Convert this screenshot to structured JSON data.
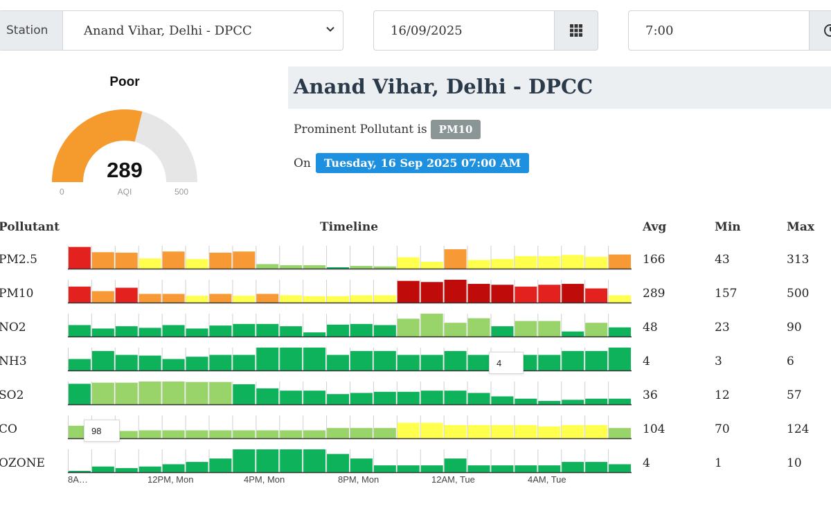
{
  "controls": {
    "station_label": "Station",
    "station_value": "Anand Vihar, Delhi - DPCC",
    "date_value": "16/09/2025",
    "time_value": "7:00"
  },
  "gauge": {
    "status": "Poor",
    "value": 289,
    "value_text": "289",
    "min_label": "0",
    "max_label": "500",
    "unit_label": "AQI",
    "range": [
      0,
      500
    ],
    "color": "#f59a2c"
  },
  "station": {
    "title": "Anand Vihar, Delhi - DPCC",
    "prominent_prefix": "Prominent Pollutant is",
    "prominent_value": "PM10",
    "on_prefix": "On",
    "datetime": "Tuesday, 16 Sep 2025 07:00 AM"
  },
  "table": {
    "headers": {
      "pollutant": "Pollutant",
      "timeline": "Timeline",
      "avg": "Avg",
      "min": "Min",
      "max": "Max"
    },
    "time_labels": [
      "8A…",
      "12PM, Mon",
      "4PM, Mon",
      "8PM, Mon",
      "12AM, Tue",
      "4AM, Tue"
    ],
    "colors": {
      "red": "#e3211e",
      "orange": "#f79a35",
      "yellow": "#ffff4d",
      "lightgreen": "#98d46a",
      "green": "#0db25a",
      "darkred": "#c00b0b"
    },
    "rows": [
      {
        "name": "PM2.5",
        "avg": "166",
        "min": "43",
        "max": "313",
        "values": [
          0.95,
          0.72,
          0.7,
          0.45,
          0.75,
          0.42,
          0.7,
          0.75,
          0.2,
          0.15,
          0.15,
          0.05,
          0.12,
          0.1,
          0.5,
          0.3,
          0.85,
          0.38,
          0.42,
          0.55,
          0.55,
          0.6,
          0.52,
          0.62
        ],
        "colors": [
          "red",
          "orange",
          "orange",
          "yellow",
          "orange",
          "yellow",
          "orange",
          "orange",
          "lightgreen",
          "lightgreen",
          "lightgreen",
          "green",
          "lightgreen",
          "lightgreen",
          "yellow",
          "yellow",
          "orange",
          "yellow",
          "yellow",
          "yellow",
          "yellow",
          "yellow",
          "yellow",
          "orange"
        ]
      },
      {
        "name": "PM10",
        "avg": "289",
        "min": "157",
        "max": "500",
        "values": [
          0.7,
          0.5,
          0.65,
          0.38,
          0.38,
          0.3,
          0.38,
          0.3,
          0.38,
          0.32,
          0.28,
          0.28,
          0.32,
          0.32,
          0.95,
          0.9,
          1.0,
          0.82,
          0.78,
          0.7,
          0.78,
          0.82,
          0.62,
          0.32
        ],
        "colors": [
          "red",
          "orange",
          "red",
          "orange",
          "orange",
          "yellow",
          "orange",
          "yellow",
          "orange",
          "yellow",
          "yellow",
          "yellow",
          "yellow",
          "yellow",
          "darkred",
          "darkred",
          "darkred",
          "darkred",
          "darkred",
          "red",
          "red",
          "darkred",
          "red",
          "yellow"
        ]
      },
      {
        "name": "NO2",
        "avg": "48",
        "min": "23",
        "max": "90",
        "values": [
          0.5,
          0.35,
          0.45,
          0.38,
          0.5,
          0.35,
          0.48,
          0.55,
          0.55,
          0.45,
          0.18,
          0.52,
          0.55,
          0.5,
          0.78,
          1.0,
          0.6,
          0.8,
          0.45,
          0.68,
          0.68,
          0.22,
          0.6,
          0.4
        ],
        "colors": [
          "green",
          "green",
          "green",
          "green",
          "green",
          "green",
          "green",
          "green",
          "green",
          "green",
          "green",
          "green",
          "green",
          "green",
          "lightgreen",
          "lightgreen",
          "lightgreen",
          "lightgreen",
          "green",
          "lightgreen",
          "lightgreen",
          "green",
          "lightgreen",
          "green"
        ]
      },
      {
        "name": "NH3",
        "avg": "4",
        "min": "3",
        "max": "6",
        "values": [
          0.5,
          0.85,
          0.68,
          0.65,
          0.5,
          0.6,
          0.68,
          0.68,
          1.0,
          1.0,
          1.0,
          0.68,
          0.85,
          0.85,
          0.68,
          0.68,
          0.85,
          0.68,
          0.68,
          0.68,
          0.68,
          0.85,
          0.85,
          1.0
        ],
        "colors": [
          "green",
          "green",
          "green",
          "green",
          "green",
          "green",
          "green",
          "green",
          "green",
          "green",
          "green",
          "green",
          "green",
          "green",
          "green",
          "green",
          "green",
          "green",
          "green",
          "green",
          "green",
          "green",
          "green",
          "green"
        ]
      },
      {
        "name": "SO2",
        "avg": "36",
        "min": "12",
        "max": "57",
        "values": [
          0.9,
          0.95,
          0.95,
          1.0,
          1.0,
          0.98,
          0.98,
          0.88,
          0.7,
          0.6,
          0.6,
          0.45,
          0.5,
          0.55,
          0.55,
          0.6,
          0.6,
          0.5,
          0.35,
          0.25,
          0.15,
          0.2,
          0.25,
          0.25
        ],
        "colors": [
          "green",
          "lightgreen",
          "lightgreen",
          "lightgreen",
          "lightgreen",
          "lightgreen",
          "lightgreen",
          "green",
          "green",
          "green",
          "green",
          "green",
          "green",
          "green",
          "green",
          "green",
          "green",
          "green",
          "green",
          "green",
          "green",
          "green",
          "green",
          "green"
        ]
      },
      {
        "name": "CO",
        "avg": "104",
        "min": "70",
        "max": "124",
        "values": [
          0.55,
          0.55,
          0.32,
          0.35,
          0.35,
          0.35,
          0.35,
          0.35,
          0.35,
          0.35,
          0.35,
          0.45,
          0.45,
          0.45,
          0.68,
          0.68,
          0.58,
          0.58,
          0.58,
          0.58,
          0.52,
          0.58,
          0.58,
          0.45
        ],
        "colors": [
          "lightgreen",
          "lightgreen",
          "lightgreen",
          "lightgreen",
          "lightgreen",
          "lightgreen",
          "lightgreen",
          "lightgreen",
          "lightgreen",
          "lightgreen",
          "lightgreen",
          "lightgreen",
          "lightgreen",
          "lightgreen",
          "yellow",
          "yellow",
          "yellow",
          "yellow",
          "yellow",
          "yellow",
          "yellow",
          "yellow",
          "yellow",
          "lightgreen"
        ]
      },
      {
        "name": "OZONE",
        "avg": "4",
        "min": "1",
        "max": "10",
        "values": [
          0.05,
          0.25,
          0.18,
          0.25,
          0.35,
          0.45,
          0.6,
          1.0,
          1.0,
          1.0,
          1.0,
          0.8,
          0.6,
          0.3,
          0.3,
          0.3,
          0.6,
          0.3,
          0.3,
          0.3,
          0.3,
          0.45,
          0.45,
          0.35
        ],
        "colors": [
          "green",
          "green",
          "green",
          "green",
          "green",
          "green",
          "green",
          "green",
          "green",
          "green",
          "green",
          "green",
          "green",
          "green",
          "green",
          "green",
          "green",
          "green",
          "green",
          "green",
          "green",
          "green",
          "green",
          "green"
        ]
      }
    ],
    "tooltips": [
      {
        "row": 3,
        "text": "4"
      },
      {
        "row": 5,
        "text": "98"
      }
    ]
  }
}
